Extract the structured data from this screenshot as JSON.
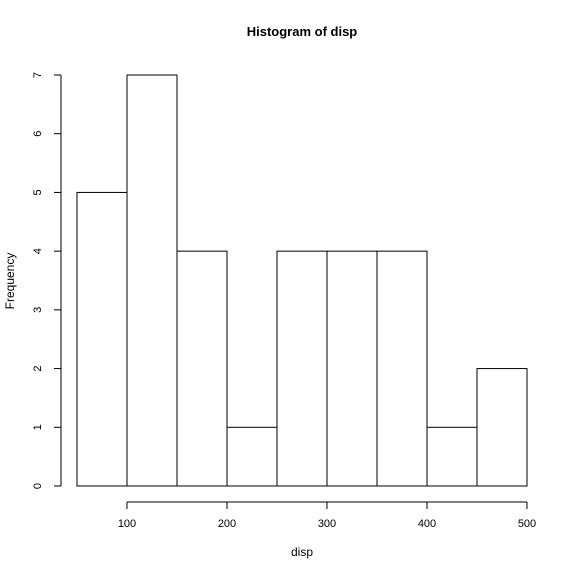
{
  "chart_data": {
    "type": "bar",
    "title": "Histogram of disp",
    "xlabel": "disp",
    "ylabel": "Frequency",
    "bins": [
      {
        "from": 50,
        "to": 100,
        "count": 5
      },
      {
        "from": 100,
        "to": 150,
        "count": 7
      },
      {
        "from": 150,
        "to": 200,
        "count": 4
      },
      {
        "from": 200,
        "to": 250,
        "count": 1
      },
      {
        "from": 250,
        "to": 300,
        "count": 4
      },
      {
        "from": 300,
        "to": 350,
        "count": 4
      },
      {
        "from": 350,
        "to": 400,
        "count": 4
      },
      {
        "from": 400,
        "to": 450,
        "count": 1
      },
      {
        "from": 450,
        "to": 500,
        "count": 2
      }
    ],
    "x_ticks": [
      100,
      200,
      300,
      400,
      500
    ],
    "y_ticks": [
      0,
      1,
      2,
      3,
      4,
      5,
      6,
      7
    ],
    "xlim": [
      50,
      500
    ],
    "ylim": [
      0,
      7
    ],
    "grid": false,
    "legend": "none"
  }
}
